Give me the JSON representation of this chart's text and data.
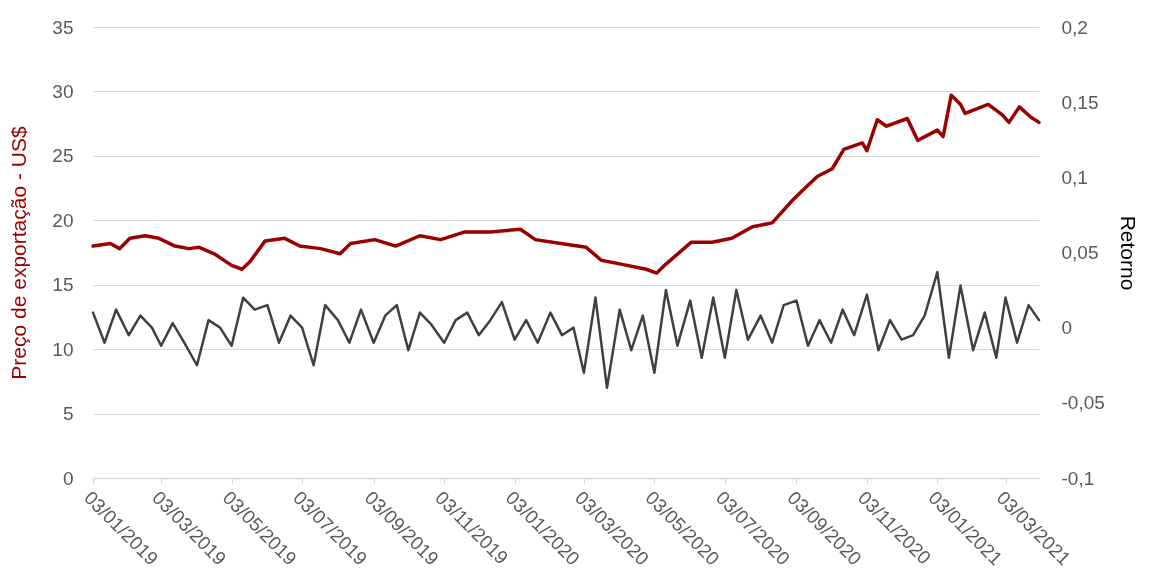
{
  "chart_data": {
    "type": "line",
    "ylabel": "Preço de exportação - US$",
    "y2label": "Retorno",
    "grid": "y",
    "xlim": [
      "2019-01-03",
      "2021-04-01"
    ],
    "xticks": [
      {
        "value": "2019-01-03",
        "label": "03/01/2019"
      },
      {
        "value": "2019-03-03",
        "label": "03/03/2019"
      },
      {
        "value": "2019-05-03",
        "label": "03/05/2019"
      },
      {
        "value": "2019-07-03",
        "label": "03/07/2019"
      },
      {
        "value": "2019-09-03",
        "label": "03/09/2019"
      },
      {
        "value": "2019-11-03",
        "label": "03/11/2019"
      },
      {
        "value": "2020-01-03",
        "label": "03/01/2020"
      },
      {
        "value": "2020-03-03",
        "label": "03/03/2020"
      },
      {
        "value": "2020-05-03",
        "label": "03/05/2020"
      },
      {
        "value": "2020-07-03",
        "label": "03/07/2020"
      },
      {
        "value": "2020-09-03",
        "label": "03/09/2020"
      },
      {
        "value": "2020-11-03",
        "label": "03/11/2020"
      },
      {
        "value": "2021-01-03",
        "label": "03/01/2021"
      },
      {
        "value": "2021-03-03",
        "label": "03/03/2021"
      }
    ],
    "ylim": [
      0,
      35
    ],
    "yticks": [
      0,
      5,
      10,
      15,
      20,
      25,
      30,
      35
    ],
    "y2lim": [
      -0.1,
      0.2
    ],
    "y2ticks": [
      {
        "value": -0.1,
        "label": "-0,1"
      },
      {
        "value": -0.05,
        "label": "-0,05"
      },
      {
        "value": 0,
        "label": "0"
      },
      {
        "value": 0.05,
        "label": "0,05"
      },
      {
        "value": 0.1,
        "label": "0,1"
      },
      {
        "value": 0.15,
        "label": "0,15"
      },
      {
        "value": 0.2,
        "label": "0,2"
      }
    ],
    "series": [
      {
        "color": "#9b0000",
        "x": [
          "2019-01-03",
          "2019-01-18",
          "2019-01-26",
          "2019-02-04",
          "2019-02-17",
          "2019-03-01",
          "2019-03-15",
          "2019-03-27",
          "2019-04-05",
          "2019-04-18",
          "2019-05-03",
          "2019-05-12",
          "2019-05-19",
          "2019-06-01",
          "2019-06-18",
          "2019-07-01",
          "2019-07-19",
          "2019-08-05",
          "2019-08-14",
          "2019-09-04",
          "2019-09-22",
          "2019-10-13",
          "2019-10-31",
          "2019-11-21",
          "2019-12-13",
          "2020-01-08",
          "2020-01-21",
          "2020-02-12",
          "2020-03-05",
          "2020-03-18",
          "2020-04-04",
          "2020-04-26",
          "2020-05-05",
          "2020-05-13",
          "2020-06-04",
          "2020-06-22",
          "2020-07-09",
          "2020-07-27",
          "2020-08-13",
          "2020-08-30",
          "2020-09-08",
          "2020-09-21",
          "2020-10-04",
          "2020-10-14",
          "2020-10-30",
          "2020-11-03",
          "2020-11-12",
          "2020-11-20",
          "2020-12-08",
          "2020-12-17",
          "2021-01-03",
          "2021-01-08",
          "2021-01-15",
          "2021-01-23",
          "2021-01-27",
          "2021-02-16",
          "2021-02-28",
          "2021-03-06",
          "2021-03-15",
          "2021-03-25",
          "2021-04-01"
        ],
        "values": [
          18.0,
          18.2,
          17.8,
          18.6,
          18.8,
          18.6,
          18.0,
          17.8,
          17.9,
          17.4,
          16.5,
          16.2,
          16.8,
          18.4,
          18.6,
          18.0,
          17.8,
          17.4,
          18.2,
          18.5,
          18.0,
          18.8,
          18.5,
          19.1,
          19.1,
          19.3,
          18.5,
          18.2,
          17.9,
          16.9,
          16.6,
          16.2,
          15.9,
          16.6,
          18.3,
          18.3,
          18.6,
          19.5,
          19.8,
          21.5,
          22.3,
          23.4,
          24.0,
          25.5,
          26.0,
          25.4,
          27.8,
          27.3,
          27.9,
          26.2,
          27.0,
          26.5,
          29.7,
          29.0,
          28.3,
          29.0,
          28.2,
          27.6,
          28.8,
          28.0,
          27.6
        ]
      },
      {
        "color": "#404040",
        "axis": "y2",
        "x": [
          "2019-01-03",
          "2019-01-13",
          "2019-01-23",
          "2019-02-03",
          "2019-02-13",
          "2019-02-23",
          "2019-03-03",
          "2019-03-13",
          "2019-03-23",
          "2019-04-03",
          "2019-04-13",
          "2019-04-23",
          "2019-05-03",
          "2019-05-13",
          "2019-05-23",
          "2019-06-03",
          "2019-06-13",
          "2019-06-23",
          "2019-07-03",
          "2019-07-13",
          "2019-07-23",
          "2019-08-03",
          "2019-08-13",
          "2019-08-23",
          "2019-09-03",
          "2019-09-13",
          "2019-09-23",
          "2019-10-03",
          "2019-10-13",
          "2019-10-23",
          "2019-11-03",
          "2019-11-13",
          "2019-11-23",
          "2019-12-03",
          "2019-12-13",
          "2019-12-23",
          "2020-01-03",
          "2020-01-13",
          "2020-01-23",
          "2020-02-03",
          "2020-02-13",
          "2020-02-23",
          "2020-03-03",
          "2020-03-13",
          "2020-03-23",
          "2020-04-03",
          "2020-04-13",
          "2020-04-23",
          "2020-05-03",
          "2020-05-13",
          "2020-05-23",
          "2020-06-03",
          "2020-06-13",
          "2020-06-23",
          "2020-07-03",
          "2020-07-13",
          "2020-07-23",
          "2020-08-03",
          "2020-08-13",
          "2020-08-23",
          "2020-09-03",
          "2020-09-13",
          "2020-09-23",
          "2020-10-03",
          "2020-10-13",
          "2020-10-23",
          "2020-11-03",
          "2020-11-13",
          "2020-11-23",
          "2020-12-03",
          "2020-12-13",
          "2020-12-23",
          "2021-01-03",
          "2021-01-13",
          "2021-01-23",
          "2021-02-03",
          "2021-02-13",
          "2021-02-23",
          "2021-03-03",
          "2021-03-13",
          "2021-03-23",
          "2021-04-01"
        ],
        "values": [
          0.01,
          -0.01,
          0.012,
          -0.005,
          0.008,
          0.0,
          -0.012,
          0.003,
          -0.01,
          -0.025,
          0.005,
          0.0,
          -0.012,
          0.02,
          0.012,
          0.015,
          -0.01,
          0.008,
          0.0,
          -0.025,
          0.015,
          0.005,
          -0.01,
          0.012,
          -0.01,
          0.008,
          0.015,
          -0.015,
          0.01,
          0.002,
          -0.01,
          0.005,
          0.01,
          -0.005,
          0.005,
          0.017,
          -0.008,
          0.005,
          -0.01,
          0.01,
          -0.005,
          0.0,
          -0.03,
          0.02,
          -0.04,
          0.012,
          -0.015,
          0.008,
          -0.03,
          0.025,
          -0.012,
          0.018,
          -0.02,
          0.02,
          -0.02,
          0.025,
          -0.008,
          0.008,
          -0.01,
          0.015,
          0.018,
          -0.012,
          0.005,
          -0.01,
          0.012,
          -0.005,
          0.022,
          -0.015,
          0.005,
          -0.008,
          -0.005,
          0.008,
          0.037,
          -0.02,
          0.028,
          -0.015,
          0.01,
          -0.02,
          0.02,
          -0.01,
          0.015,
          0.005
        ]
      }
    ]
  }
}
